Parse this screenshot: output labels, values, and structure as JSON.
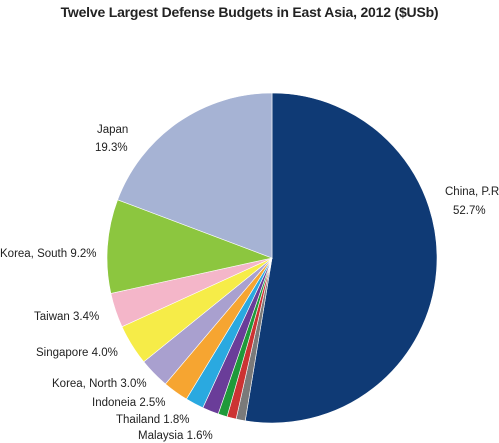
{
  "chart_data": {
    "type": "pie",
    "title": "Twelve Largest Defense Budgets in East Asia, 2012 ($USb)",
    "slices": [
      {
        "label": "China, P.R.",
        "value": 52.7,
        "value_label": "52.7%",
        "color": "#0f3a75"
      },
      {
        "label": "",
        "value": 0.9,
        "value_label": "",
        "color": "#7a7a7a"
      },
      {
        "label": "",
        "value": 0.9,
        "value_label": "",
        "color": "#cc3333"
      },
      {
        "label": "Malaysia 1.6%",
        "value": 1.6,
        "value_label": "",
        "color": "#1f9a3a"
      },
      {
        "label": "Thailand 1.8%",
        "value": 1.8,
        "value_label": "",
        "color": "#6a3d99"
      },
      {
        "label": "Indoneia 2.5%",
        "value": 2.5,
        "value_label": "",
        "color": "#2aa9e0"
      },
      {
        "label": "Korea, North 3.0%",
        "value": 3.0,
        "value_label": "",
        "color": "#f6a531"
      },
      {
        "label": "Singapore 4.0%",
        "value": 4.0,
        "value_label": "",
        "color": "#a9a0cf"
      },
      {
        "label": "Taiwan 3.4%",
        "value": 3.4,
        "value_label": "",
        "color": "#f6ec48"
      },
      {
        "label": "Korea, South 9.2%",
        "value": 9.2,
        "value_label": "",
        "color": "#f4b6c9"
      },
      {
        "label": "Japan",
        "value": 19.3,
        "value_label": "19.3%",
        "color": "#8cc63f"
      },
      {
        "label": "",
        "value": 0.0,
        "value_label": "",
        "color": "#a6b3d4"
      }
    ],
    "legend": "none"
  }
}
